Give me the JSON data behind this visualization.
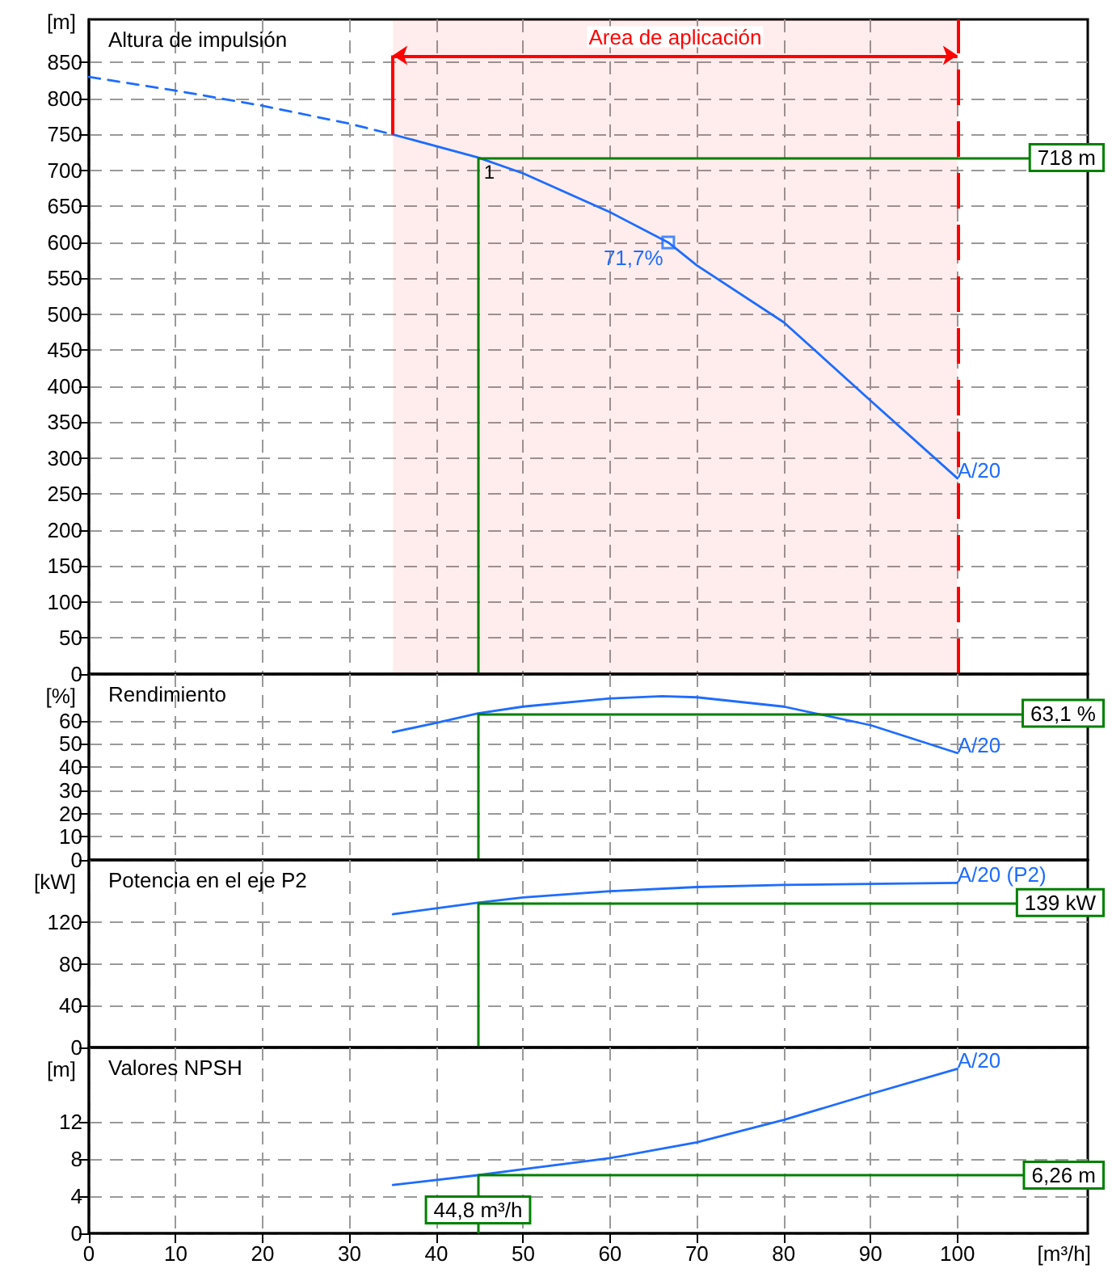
{
  "chart_data": [
    {
      "type": "line",
      "title": "Altura de impulsión",
      "ylabel": "[m]",
      "xlim": [
        0,
        115
      ],
      "xticks": [
        0,
        10,
        20,
        30,
        40,
        50,
        60,
        70,
        80,
        90,
        100
      ],
      "ylim": [
        0,
        910
      ],
      "yticks": [
        0,
        50,
        100,
        150,
        200,
        250,
        300,
        350,
        400,
        450,
        500,
        550,
        600,
        650,
        700,
        750,
        800,
        850
      ],
      "tick_labels": "y",
      "grid": true,
      "series": [
        {
          "color": "#1e6cff",
          "line_style": "dashed",
          "x": [
            0,
            10,
            20,
            30,
            35
          ],
          "values": [
            830,
            811,
            790,
            765,
            750
          ]
        },
        {
          "name": "A/20",
          "color": "#1e6cff",
          "line_style": "solid",
          "x": [
            35,
            44.8,
            50,
            60,
            66.7,
            70,
            80,
            90,
            100
          ],
          "values": [
            750,
            718,
            696,
            642,
            600,
            568,
            489,
            380,
            272
          ]
        },
        {
          "type": "scatter",
          "marker": "square",
          "color": "#1e6cff",
          "x": [
            66.7
          ],
          "values": [
            600
          ]
        }
      ],
      "ref_lines": [
        {
          "axis": "x",
          "value": 44.8,
          "color": "#008000"
        },
        {
          "axis": "y",
          "value": 718,
          "label": "718 m",
          "color": "#008000"
        },
        {
          "axis": "x",
          "value": 100,
          "color": "#ff0000",
          "line_style": "dashed"
        }
      ],
      "bands": [
        {
          "axis": "x",
          "from": 35,
          "to": 100,
          "label": "Area de aplicación",
          "color": "#ff0000"
        }
      ],
      "annotations": [
        {
          "text": "1",
          "x": 44.8,
          "y": 718
        },
        {
          "text": "71,7%",
          "x": 66.7,
          "y": 600
        }
      ]
    },
    {
      "type": "line",
      "title": "Rendimiento",
      "ylabel": "[%]",
      "xlim": [
        0,
        115
      ],
      "xticks": [
        0,
        10,
        20,
        30,
        40,
        50,
        60,
        70,
        80,
        90,
        100
      ],
      "ylim": [
        0,
        80
      ],
      "yticks": [
        0,
        10,
        20,
        30,
        40,
        50,
        60
      ],
      "tick_labels": "y",
      "grid": true,
      "series": [
        {
          "name": "A/20",
          "color": "#1e6cff",
          "x": [
            35,
            40,
            44.8,
            50,
            60,
            66,
            70,
            80,
            90,
            100
          ],
          "values": [
            55,
            59,
            63.1,
            66,
            69.5,
            70.5,
            70,
            66,
            58,
            46
          ]
        }
      ],
      "ref_lines": [
        {
          "axis": "x",
          "value": 44.8,
          "color": "#008000"
        },
        {
          "axis": "y",
          "value": 63.1,
          "label": "63,1 %",
          "color": "#008000"
        }
      ]
    },
    {
      "type": "line",
      "title": "Potencia en el eje P2",
      "ylabel": "[kW]",
      "xlim": [
        0,
        115
      ],
      "xticks": [
        0,
        10,
        20,
        30,
        40,
        50,
        60,
        70,
        80,
        90,
        100
      ],
      "ylim": [
        0,
        180
      ],
      "yticks": [
        0,
        40,
        80,
        120
      ],
      "tick_labels": "y",
      "grid": true,
      "series": [
        {
          "name": "A/20 (P2)",
          "color": "#1e6cff",
          "x": [
            35,
            44.8,
            50,
            60,
            70,
            80,
            90,
            100
          ],
          "values": [
            128,
            139,
            144,
            150,
            154,
            156,
            157,
            158
          ]
        }
      ],
      "ref_lines": [
        {
          "axis": "x",
          "value": 44.8,
          "color": "#008000"
        },
        {
          "axis": "y",
          "value": 139,
          "label": "139 kW",
          "color": "#008000"
        }
      ]
    },
    {
      "type": "line",
      "title": "Valores NPSH",
      "ylabel": "[m]",
      "xlabel": "[m³/h]",
      "xlim": [
        0,
        115
      ],
      "xticks": [
        0,
        10,
        20,
        30,
        40,
        50,
        60,
        70,
        80,
        90,
        100
      ],
      "ylim": [
        0,
        20
      ],
      "yticks": [
        0,
        4,
        8,
        12
      ],
      "grid": true,
      "series": [
        {
          "name": "A/20",
          "color": "#1e6cff",
          "x": [
            35,
            44.8,
            50,
            60,
            70,
            80,
            90,
            100
          ],
          "values": [
            5.2,
            6.26,
            6.9,
            8.1,
            9.8,
            12.2,
            15,
            17.7
          ]
        }
      ],
      "ref_lines": [
        {
          "axis": "x",
          "value": 44.8,
          "label": "44,8 m³/h",
          "color": "#008000"
        },
        {
          "axis": "y",
          "value": 6.26,
          "label": "6,26 m",
          "color": "#008000"
        }
      ]
    }
  ]
}
